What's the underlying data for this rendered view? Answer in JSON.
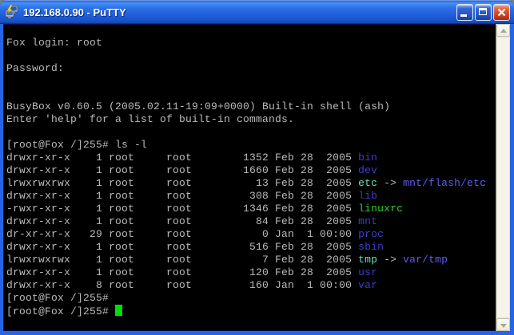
{
  "window": {
    "title": "192.168.0.90 - PuTTY"
  },
  "colors": {
    "fg": "#BBBBBB",
    "bg": "#000000",
    "dir": "#3E3ECF",
    "symlink": "#5FE3B3",
    "exec": "#33CC33",
    "link_target": "#5C5CF0",
    "cursor": "#00DD00",
    "frame": "#2565E5"
  },
  "icons": {
    "app": "putty-terminal-icon",
    "minimize": "minimize-icon",
    "maximize": "maximize-icon",
    "close": "close-icon",
    "scroll_up": "chevron-up-icon",
    "scroll_down": "chevron-down-icon"
  },
  "terminal": {
    "lines": [
      [
        [
          "Fox login: root",
          "fg"
        ]
      ],
      [],
      [
        [
          "Password:",
          "fg"
        ]
      ],
      [],
      [],
      [
        [
          "BusyBox v0.60.5 (2005.02.11-19:09+0000) Built-in shell (ash)",
          "fg"
        ]
      ],
      [
        [
          "Enter 'help' for a list of built-in commands.",
          "fg"
        ]
      ],
      [],
      [
        [
          "[root@Fox /]255# ls -l",
          "fg"
        ]
      ],
      [
        [
          "drwxr-xr-x    1 root     root        1352 Feb 28  2005 ",
          "fg"
        ],
        [
          "bin",
          "dir"
        ]
      ],
      [
        [
          "drwxr-xr-x    1 root     root        1660 Feb 28  2005 ",
          "fg"
        ],
        [
          "dev",
          "dir"
        ]
      ],
      [
        [
          "lrwxrwxrwx    1 root     root          13 Feb 28  2005 ",
          "fg"
        ],
        [
          "etc",
          "symlink"
        ],
        [
          " -> ",
          "fg"
        ],
        [
          "mnt/flash/etc",
          "link_target"
        ]
      ],
      [
        [
          "drwxr-xr-x    1 root     root         308 Feb 28  2005 ",
          "fg"
        ],
        [
          "lib",
          "dir"
        ]
      ],
      [
        [
          "-rwxr-xr-x    1 root     root        1346 Feb 28  2005 ",
          "fg"
        ],
        [
          "linuxrc",
          "exec"
        ]
      ],
      [
        [
          "drwxr-xr-x    1 root     root          84 Feb 28  2005 ",
          "fg"
        ],
        [
          "mnt",
          "dir"
        ]
      ],
      [
        [
          "dr-xr-xr-x   29 root     root           0 Jan  1 00:00 ",
          "fg"
        ],
        [
          "proc",
          "dir"
        ]
      ],
      [
        [
          "drwxr-xr-x    1 root     root         516 Feb 28  2005 ",
          "fg"
        ],
        [
          "sbin",
          "dir"
        ]
      ],
      [
        [
          "lrwxrwxrwx    1 root     root           7 Feb 28  2005 ",
          "fg"
        ],
        [
          "tmp",
          "symlink"
        ],
        [
          " -> ",
          "fg"
        ],
        [
          "var/tmp",
          "link_target"
        ]
      ],
      [
        [
          "drwxr-xr-x    1 root     root         120 Feb 28  2005 ",
          "fg"
        ],
        [
          "usr",
          "dir"
        ]
      ],
      [
        [
          "drwxr-xr-x    8 root     root         160 Jan  1 00:00 ",
          "fg"
        ],
        [
          "var",
          "dir"
        ]
      ],
      [
        [
          "[root@Fox /]255#",
          "fg"
        ]
      ],
      [
        [
          "[root@Fox /]255# ",
          "fg"
        ],
        [
          "",
          "cursor"
        ]
      ]
    ]
  }
}
